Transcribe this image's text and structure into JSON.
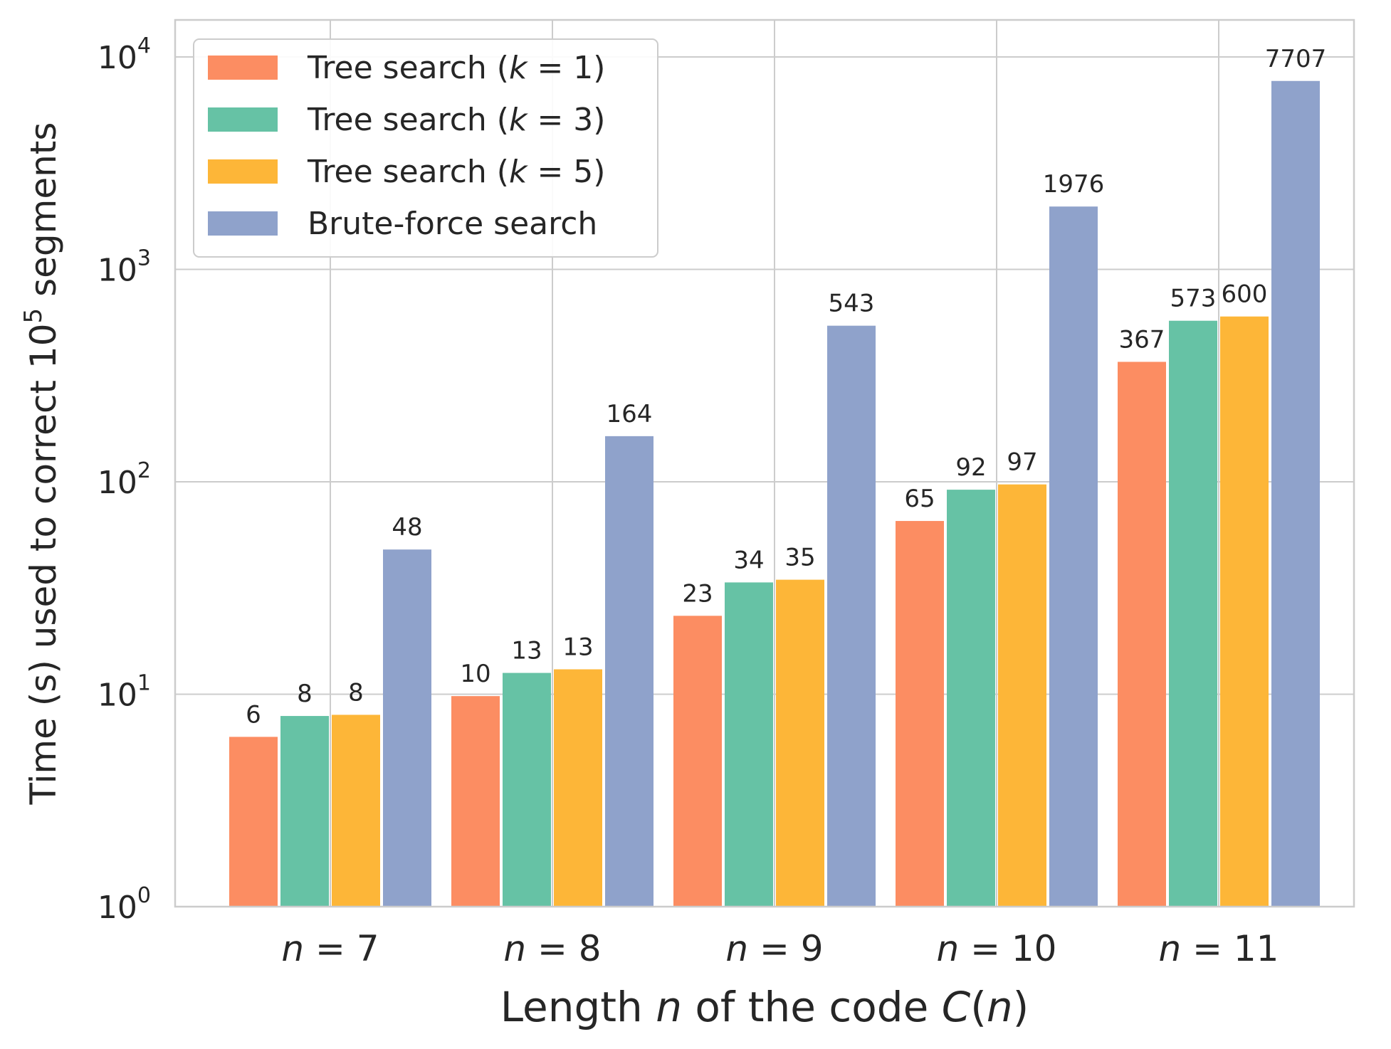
{
  "chart_data": {
    "type": "bar",
    "title": "",
    "xlabel": "Length n of the code C(n)",
    "ylabel": "Time (s) used to correct 10^5 segments",
    "yscale": "log",
    "ylim": [
      1,
      15000
    ],
    "grid": true,
    "legend_position": "top-left",
    "categories": [
      "n = 7",
      "n = 8",
      "n = 9",
      "n = 10",
      "n = 11"
    ],
    "yticks": [
      {
        "value": 1,
        "base": "10",
        "exp": "0"
      },
      {
        "value": 10,
        "base": "10",
        "exp": "1"
      },
      {
        "value": 100,
        "base": "10",
        "exp": "2"
      },
      {
        "value": 1000,
        "base": "10",
        "exp": "3"
      },
      {
        "value": 10000,
        "base": "10",
        "exp": "4"
      }
    ],
    "series": [
      {
        "name": "Tree search (k = 1)",
        "color": "#fc8d62",
        "values": [
          6.3,
          9.8,
          23.4,
          65.4,
          367
        ],
        "labels": [
          "6",
          "10",
          "23",
          "65",
          "367"
        ]
      },
      {
        "name": "Tree search (k = 3)",
        "color": "#66c2a5",
        "values": [
          7.9,
          12.6,
          33.6,
          91.8,
          573
        ],
        "labels": [
          "8",
          "13",
          "34",
          "92",
          "573"
        ]
      },
      {
        "name": "Tree search (k = 5)",
        "color": "#fdb638",
        "values": [
          8.0,
          13.1,
          34.6,
          97.2,
          600
        ],
        "labels": [
          "8",
          "13",
          "35",
          "97",
          "600"
        ]
      },
      {
        "name": "Brute-force search",
        "color": "#8fa2cb",
        "values": [
          48,
          164,
          543,
          1976,
          7707
        ],
        "labels": [
          "48",
          "164",
          "543",
          "1976",
          "7707"
        ]
      }
    ]
  }
}
